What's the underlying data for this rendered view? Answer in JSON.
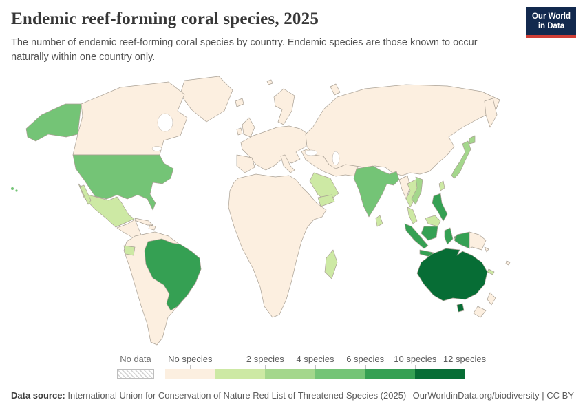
{
  "header": {
    "title": "Endemic reef-forming coral species, 2025",
    "subtitle": "The number of endemic reef-forming coral species by country. Endemic species are those known to occur naturally within one country only.",
    "logo": {
      "line1": "Our World",
      "line2": "in Data",
      "bg_color": "#12294e",
      "bar_color": "#cf3e36"
    }
  },
  "chart_data": {
    "type": "choropleth_map",
    "title": "Endemic reef-forming coral species, 2025",
    "unit": "species",
    "legend_position": "bottom",
    "ocean_color": "#ffffff",
    "border_color": "#a9a094",
    "bins": [
      {
        "label": "No data",
        "style": "hatch"
      },
      {
        "label": "No species",
        "color": "#fcefe0"
      },
      {
        "label": "2 species",
        "color": "#cde9a4"
      },
      {
        "label": "4 species",
        "color": "#a4d78c"
      },
      {
        "label": "6 species",
        "color": "#74c476"
      },
      {
        "label": "10 species",
        "color": "#35a053"
      },
      {
        "label": "12 species",
        "color": "#076d35"
      }
    ],
    "country_bins": {
      "united-states": "6 species",
      "india": "6 species",
      "japan": "4 species",
      "vietnam": "4 species",
      "brazil": "10 species",
      "indonesia": "10 species",
      "philippines": "10 species",
      "australia": "12 species",
      "mexico": "2 species",
      "ecuador": "2 species",
      "saudi-arabia": "2 species",
      "yemen": "2 species",
      "thailand": "2 species",
      "malaysia": "2 species",
      "sri-lanka": "2 species",
      "taiwan": "2 species",
      "madagascar": "2 species",
      "new-caledonia": "2 species",
      "default": "No species"
    }
  },
  "footer": {
    "datasource_label": "Data source:",
    "datasource_text": "International Union for Conservation of Nature Red List of Threatened Species (2025)",
    "right_text": "OurWorldinData.org/biodiversity | CC BY"
  }
}
